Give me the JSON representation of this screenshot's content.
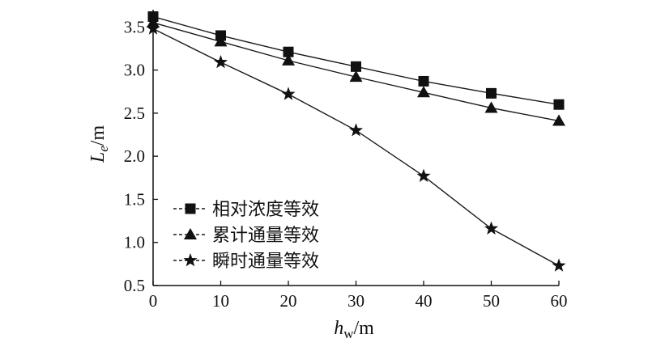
{
  "chart_data": {
    "type": "line",
    "x": [
      0,
      10,
      20,
      30,
      40,
      50,
      60
    ],
    "series": [
      {
        "name": "相对浓度等效",
        "marker": "square",
        "values": [
          3.62,
          3.4,
          3.21,
          3.04,
          2.87,
          2.73,
          2.6
        ]
      },
      {
        "name": "累计通量等效",
        "marker": "triangle",
        "values": [
          3.55,
          3.33,
          3.11,
          2.92,
          2.74,
          2.56,
          2.41
        ]
      },
      {
        "name": "瞬时通量等效",
        "marker": "star",
        "values": [
          3.48,
          3.09,
          2.72,
          2.3,
          1.77,
          1.16,
          0.73
        ]
      }
    ],
    "xlim": [
      0,
      60
    ],
    "ylim": [
      0.5,
      3.7
    ],
    "xticks": [
      "0",
      "10",
      "20",
      "30",
      "40",
      "50",
      "60"
    ],
    "yticks": [
      "0.5",
      "1.0",
      "1.5",
      "2.0",
      "2.5",
      "3.0",
      "3.5"
    ],
    "xlabel": {
      "main": "h",
      "sub": "w",
      "unit": "/m"
    },
    "ylabel": {
      "main": "L",
      "sub": "e",
      "unit": "/m"
    },
    "legend_position": "lower-left",
    "grid": false,
    "colors": {
      "line": "#1a1a1a",
      "marker": "#111111"
    }
  }
}
